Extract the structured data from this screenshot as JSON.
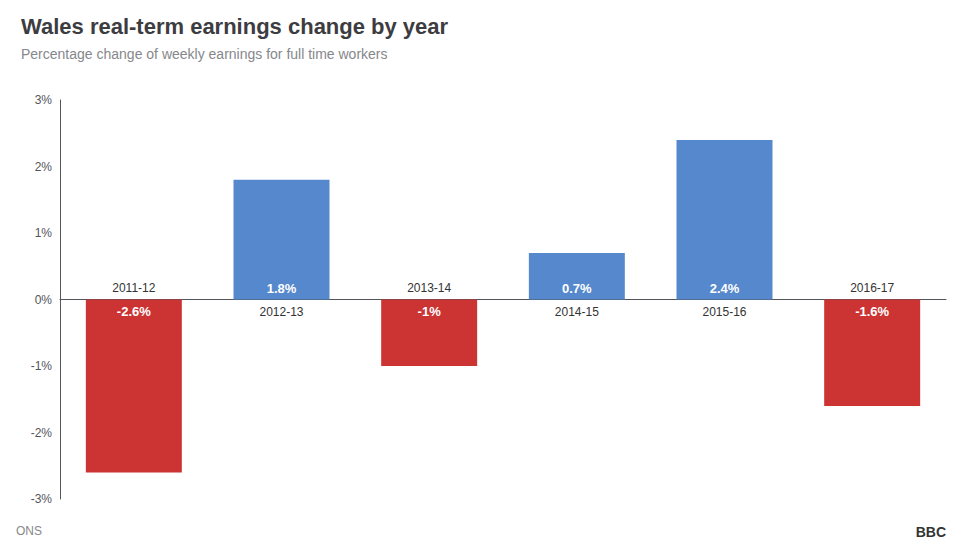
{
  "chart_data": {
    "type": "bar",
    "title": "Wales real-term earnings change by year",
    "subtitle": "Percentage change of weekly earnings for full time workers",
    "categories": [
      "2011-12",
      "2012-13",
      "2013-14",
      "2014-15",
      "2015-16",
      "2016-17"
    ],
    "values": [
      -2.6,
      1.8,
      -1.0,
      0.7,
      2.4,
      -1.6
    ],
    "value_labels": [
      "-2.6%",
      "1.8%",
      "-1%",
      "0.7%",
      "2.4%",
      "-1.6%"
    ],
    "colors": [
      "#cc3333",
      "#5588cc",
      "#cc3333",
      "#5588cc",
      "#5588cc",
      "#cc3333"
    ],
    "ylim": [
      -3.0,
      3.0
    ],
    "yticks": [
      {
        "value": -3,
        "label": "-3%"
      },
      {
        "value": -2,
        "label": "-2%"
      },
      {
        "value": -1,
        "label": "-1%"
      },
      {
        "value": 0,
        "label": "0%"
      },
      {
        "value": 1,
        "label": "1%"
      },
      {
        "value": 2,
        "label": "2%"
      },
      {
        "value": 3,
        "label": "3%"
      }
    ],
    "grid": false,
    "data_labels": true,
    "annotations": [
      "ONS",
      "BBC"
    ]
  }
}
